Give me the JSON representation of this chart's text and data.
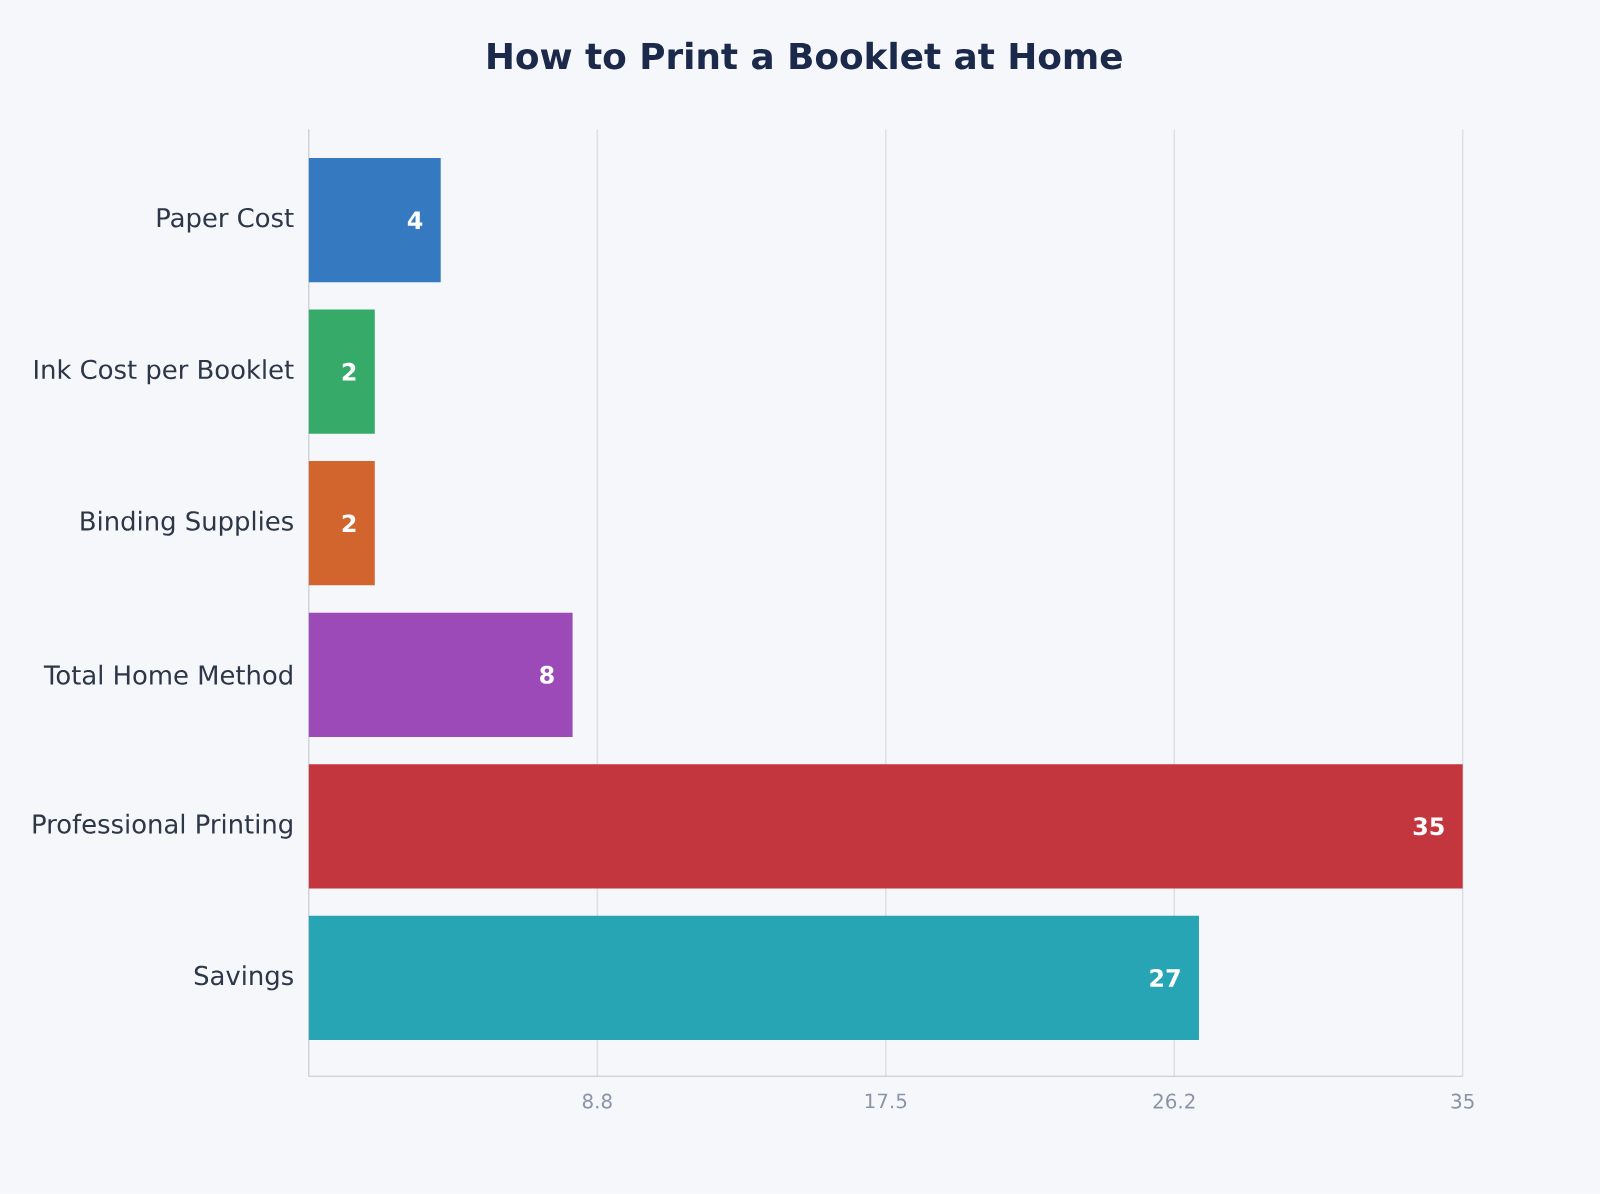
{
  "chart_data": {
    "type": "bar",
    "orientation": "horizontal",
    "title": "How to Print a Booklet at Home",
    "categories": [
      "Paper Cost",
      "Ink Cost per Booklet",
      "Binding Supplies",
      "Total Home Method",
      "Professional Printing",
      "Savings"
    ],
    "values": [
      4,
      2,
      2,
      8,
      35,
      27
    ],
    "colors": [
      "#3579c1",
      "#36aa68",
      "#d2652e",
      "#9b4ab8",
      "#c3363d",
      "#28a5b4"
    ],
    "xlim": [
      0,
      35
    ],
    "xticks": [
      {
        "value": 8.75,
        "label": "8.8"
      },
      17.5,
      {
        "value": 26.25,
        "label": "26.2"
      },
      35
    ],
    "grid": "x",
    "data_labels": true
  }
}
